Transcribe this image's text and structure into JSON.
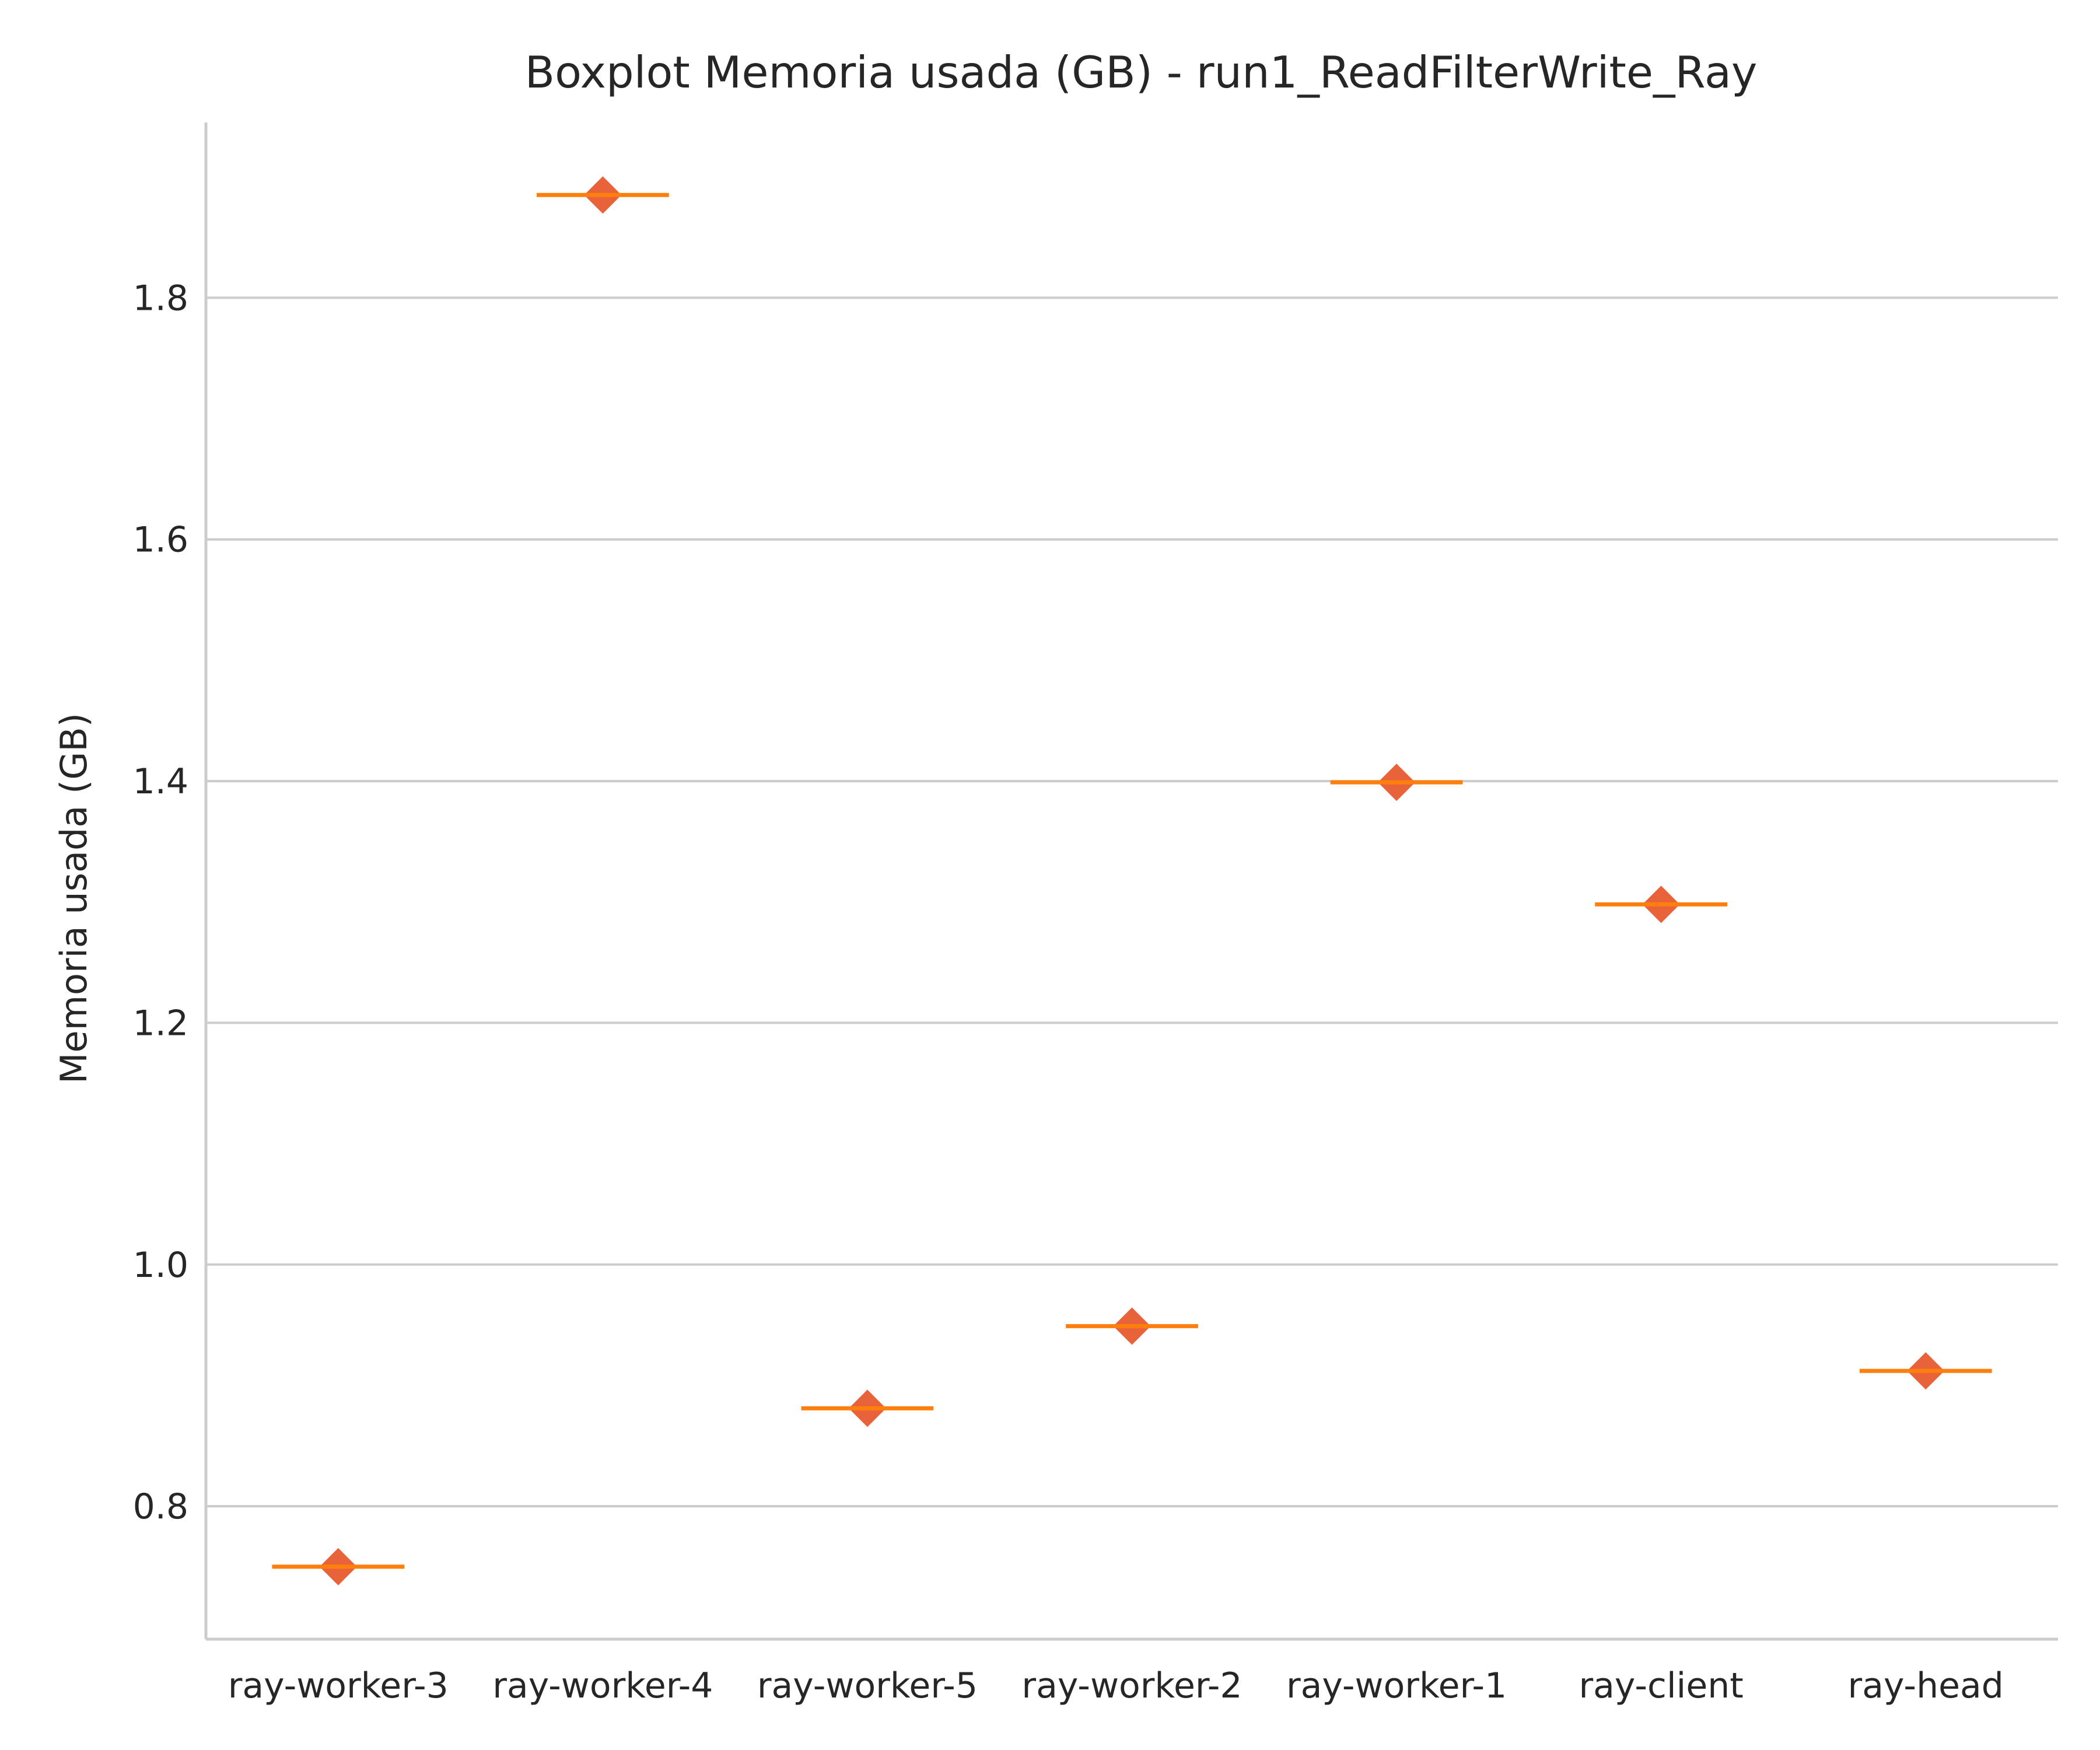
{
  "chart_data": {
    "type": "box",
    "title": "Boxplot Memoria usada (GB) - run1_ReadFilterWrite_Ray",
    "xlabel": "",
    "ylabel": "Memoria usada (GB)",
    "categories": [
      "ray-worker-3",
      "ray-worker-4",
      "ray-worker-5",
      "ray-worker-2",
      "ray-worker-1",
      "ray-client",
      "ray-head"
    ],
    "medians": [
      0.75,
      1.885,
      0.881,
      0.949,
      1.399,
      1.298,
      0.912
    ],
    "means": [
      0.75,
      1.885,
      0.881,
      0.949,
      1.399,
      1.298,
      0.912
    ],
    "ylim": [
      0.69,
      1.945
    ],
    "yticks": [
      0.8,
      1.0,
      1.2,
      1.4,
      1.6,
      1.8
    ],
    "ytick_labels": [
      "0.8",
      "1.0",
      "1.2",
      "1.4",
      "1.6",
      "1.8"
    ],
    "grid": "horizontal",
    "colors": {
      "median_line": "#ff7f0e",
      "mean_marker": "#e8623a",
      "grid": "#cccccc",
      "axis": "#cccccc",
      "text": "#262626",
      "background": "#ffffff"
    }
  }
}
